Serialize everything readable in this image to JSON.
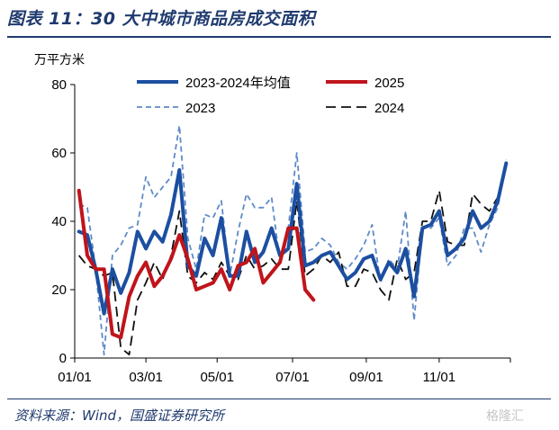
{
  "header": {
    "title": "图表 11：30 大中城市商品房成交面积"
  },
  "footer": {
    "source": "资料来源：Wind，国盛证券研究所",
    "watermark": "格隆汇"
  },
  "chart_data": {
    "type": "line",
    "ylabel": "万平方米",
    "ylim": [
      0,
      80
    ],
    "yticks": [
      0,
      20,
      40,
      60,
      80
    ],
    "x_range": [
      0,
      52
    ],
    "xticks": [
      {
        "label": "01/01",
        "week": 0
      },
      {
        "label": "03/01",
        "week": 8.5
      },
      {
        "label": "05/01",
        "week": 17
      },
      {
        "label": "07/01",
        "week": 26
      },
      {
        "label": "09/01",
        "week": 34.8
      },
      {
        "label": "11/01",
        "week": 43.5
      }
    ],
    "legend": {
      "placement": "top",
      "columns": 2
    },
    "series": [
      {
        "name": "2023-2024年均值",
        "color": "#1c4fa0",
        "style": "solid",
        "width": 4,
        "x_start": 0.5,
        "values": [
          37,
          36,
          26,
          13,
          26,
          19,
          25,
          37,
          32,
          37,
          34,
          42,
          55,
          27,
          24,
          35,
          30,
          41,
          24,
          24,
          37,
          28,
          31,
          38,
          30,
          32,
          51,
          27,
          28,
          30,
          31,
          27,
          23,
          25,
          29,
          30,
          23,
          28,
          25,
          32,
          18,
          38,
          39,
          43,
          30,
          32,
          35,
          43,
          38,
          40,
          46,
          57
        ]
      },
      {
        "name": "2025",
        "color": "#c0141b",
        "style": "solid",
        "width": 4,
        "x_start": 0.5,
        "values": [
          49,
          30,
          26,
          26,
          7,
          6,
          18,
          24,
          28,
          21,
          24,
          29,
          36,
          29,
          20,
          21,
          22,
          26,
          20,
          27,
          28,
          32,
          22,
          25,
          28,
          38,
          38,
          20,
          17
        ]
      },
      {
        "name": "2023",
        "color": "#5f8bc8",
        "style": "dashed",
        "width": 1.8,
        "x_start": 0.5,
        "values": [
          45,
          44,
          26,
          1,
          30,
          33,
          38,
          39,
          53,
          47,
          50,
          53,
          68,
          35,
          26,
          42,
          41,
          46,
          24,
          37,
          48,
          44,
          44,
          47,
          28,
          38,
          60,
          31,
          32,
          35,
          33,
          28,
          26,
          29,
          33,
          39,
          22,
          29,
          26,
          43,
          11,
          38,
          38,
          41,
          27,
          30,
          38,
          38,
          31,
          39,
          44,
          57
        ]
      },
      {
        "name": "2024",
        "color": "#111111",
        "style": "dashed",
        "width": 1.8,
        "x_start": 0.5,
        "values": [
          30,
          27,
          26,
          24,
          25,
          3,
          1,
          17,
          22,
          28,
          23,
          30,
          43,
          24,
          22,
          25,
          23,
          28,
          24,
          23,
          30,
          26,
          27,
          29,
          26,
          26,
          46,
          24,
          26,
          30,
          28,
          31,
          21,
          21,
          26,
          25,
          20,
          17,
          29,
          23,
          25,
          40,
          40,
          49,
          34,
          33,
          33,
          48,
          45,
          43,
          47,
          58
        ]
      }
    ]
  }
}
